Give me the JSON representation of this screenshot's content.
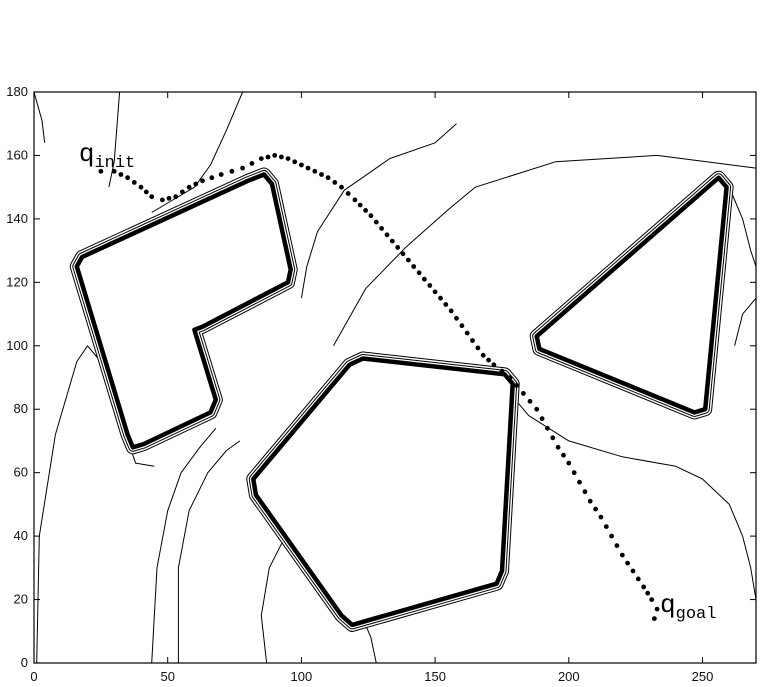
{
  "chart_data": {
    "type": "contour",
    "title": "",
    "xlabel": "",
    "ylabel": "",
    "xlim": [
      0,
      270
    ],
    "ylim": [
      0,
      180
    ],
    "grid": false,
    "x_ticks": [
      0,
      50,
      100,
      150,
      200,
      250
    ],
    "y_ticks": [
      0,
      20,
      40,
      60,
      80,
      100,
      120,
      140,
      160,
      180
    ],
    "annotations": [
      {
        "id": "init",
        "main": "q",
        "sub": "init",
        "x": 25,
        "y": 158
      },
      {
        "id": "goal",
        "main": "q",
        "sub": "goal",
        "x": 233,
        "y": 17
      }
    ],
    "obstacles": [
      {
        "name": "L-shape",
        "points": [
          [
            16,
            125
          ],
          [
            18,
            128
          ],
          [
            80,
            152
          ],
          [
            86,
            154
          ],
          [
            89,
            151
          ],
          [
            96,
            124
          ],
          [
            95,
            120
          ],
          [
            63,
            106
          ],
          [
            60,
            105
          ],
          [
            68,
            83
          ],
          [
            66,
            79
          ],
          [
            41,
            69
          ],
          [
            37,
            68
          ],
          [
            35,
            72
          ],
          [
            16,
            125
          ]
        ]
      },
      {
        "name": "pentagon",
        "points": [
          [
            82,
            58
          ],
          [
            83,
            53
          ],
          [
            115,
            15
          ],
          [
            119,
            12
          ],
          [
            173,
            25
          ],
          [
            175,
            29
          ],
          [
            179,
            88
          ],
          [
            176,
            91
          ],
          [
            123,
            96
          ],
          [
            118,
            94
          ],
          [
            82,
            58
          ]
        ]
      },
      {
        "name": "triangle",
        "points": [
          [
            188,
            103
          ],
          [
            189,
            99
          ],
          [
            247,
            79
          ],
          [
            251,
            80
          ],
          [
            259,
            150
          ],
          [
            256,
            153
          ],
          [
            188,
            103
          ]
        ]
      }
    ],
    "level_curves": [
      {
        "points": [
          [
            4,
            164
          ],
          [
            3,
            171
          ],
          [
            0,
            180
          ]
        ]
      },
      {
        "points": [
          [
            1,
            0
          ],
          [
            2,
            40
          ],
          [
            8,
            72
          ],
          [
            16,
            95
          ],
          [
            20,
            100
          ],
          [
            24,
            96
          ],
          [
            29,
            85
          ],
          [
            38,
            63
          ],
          [
            45,
            62
          ]
        ]
      },
      {
        "points": [
          [
            28,
            150
          ],
          [
            30,
            158
          ],
          [
            32,
            180
          ]
        ]
      },
      {
        "points": [
          [
            44,
            0
          ],
          [
            46,
            30
          ],
          [
            50,
            48
          ],
          [
            55,
            60
          ],
          [
            62,
            68
          ],
          [
            68,
            74
          ]
        ]
      },
      {
        "points": [
          [
            44,
            142
          ],
          [
            50,
            145
          ],
          [
            60,
            150
          ],
          [
            66,
            157
          ],
          [
            72,
            168
          ],
          [
            78,
            180
          ]
        ]
      },
      {
        "points": [
          [
            54,
            0
          ],
          [
            54,
            30
          ],
          [
            58,
            48
          ],
          [
            65,
            60
          ],
          [
            72,
            67
          ],
          [
            77,
            70
          ]
        ]
      },
      {
        "points": [
          [
            100,
            115
          ],
          [
            102,
            125
          ],
          [
            106,
            136
          ],
          [
            116,
            149
          ],
          [
            133,
            159
          ],
          [
            150,
            164
          ],
          [
            158,
            170
          ]
        ]
      },
      {
        "points": [
          [
            87,
            0
          ],
          [
            85,
            15
          ],
          [
            88,
            30
          ],
          [
            94,
            40
          ],
          [
            100,
            45
          ]
        ]
      },
      {
        "points": [
          [
            98,
            45
          ],
          [
            103,
            42
          ],
          [
            110,
            38
          ],
          [
            114,
            28
          ],
          [
            116,
            22
          ],
          [
            116,
            12
          ]
        ]
      },
      {
        "points": [
          [
            128,
            0
          ],
          [
            126,
            8
          ],
          [
            124,
            12
          ],
          [
            122,
            13
          ]
        ]
      },
      {
        "points": [
          [
            112,
            100
          ],
          [
            124,
            118
          ],
          [
            139,
            131
          ],
          [
            155,
            143
          ],
          [
            165,
            150
          ],
          [
            195,
            158
          ],
          [
            233,
            160
          ],
          [
            270,
            156
          ]
        ]
      },
      {
        "points": [
          [
            178,
            85
          ],
          [
            185,
            78
          ],
          [
            200,
            70
          ],
          [
            220,
            65
          ],
          [
            240,
            62
          ],
          [
            250,
            58
          ],
          [
            260,
            50
          ],
          [
            265,
            40
          ],
          [
            268,
            30
          ],
          [
            270,
            20
          ]
        ]
      },
      {
        "points": [
          [
            262,
            100
          ],
          [
            265,
            110
          ],
          [
            270,
            115
          ]
        ]
      },
      {
        "points": [
          [
            261,
            148
          ],
          [
            265,
            140
          ],
          [
            268,
            130
          ],
          [
            270,
            125
          ]
        ]
      }
    ],
    "path": {
      "name": "path",
      "points": [
        [
          25,
          155
        ],
        [
          30,
          155
        ],
        [
          35,
          153
        ],
        [
          40,
          150
        ],
        [
          44,
          147
        ],
        [
          48,
          146
        ],
        [
          53,
          147
        ],
        [
          58,
          150
        ],
        [
          63,
          152
        ],
        [
          70,
          154
        ],
        [
          78,
          156
        ],
        [
          85,
          159
        ],
        [
          90,
          160
        ],
        [
          95,
          159
        ],
        [
          100,
          157
        ],
        [
          105,
          155
        ],
        [
          110,
          153
        ],
        [
          115,
          150
        ],
        [
          120,
          146
        ],
        [
          126,
          141
        ],
        [
          132,
          135
        ],
        [
          138,
          129
        ],
        [
          144,
          123
        ],
        [
          150,
          117
        ],
        [
          156,
          111
        ],
        [
          162,
          104
        ],
        [
          168,
          97
        ],
        [
          172,
          94
        ],
        [
          178,
          90
        ],
        [
          183,
          85
        ],
        [
          188,
          80
        ],
        [
          192,
          74
        ],
        [
          196,
          68
        ],
        [
          200,
          63
        ],
        [
          204,
          57
        ],
        [
          208,
          51
        ],
        [
          212,
          46
        ],
        [
          216,
          40
        ],
        [
          220,
          34
        ],
        [
          224,
          29
        ],
        [
          228,
          24
        ],
        [
          231,
          20
        ],
        [
          233,
          17
        ],
        [
          232,
          14
        ]
      ]
    }
  }
}
